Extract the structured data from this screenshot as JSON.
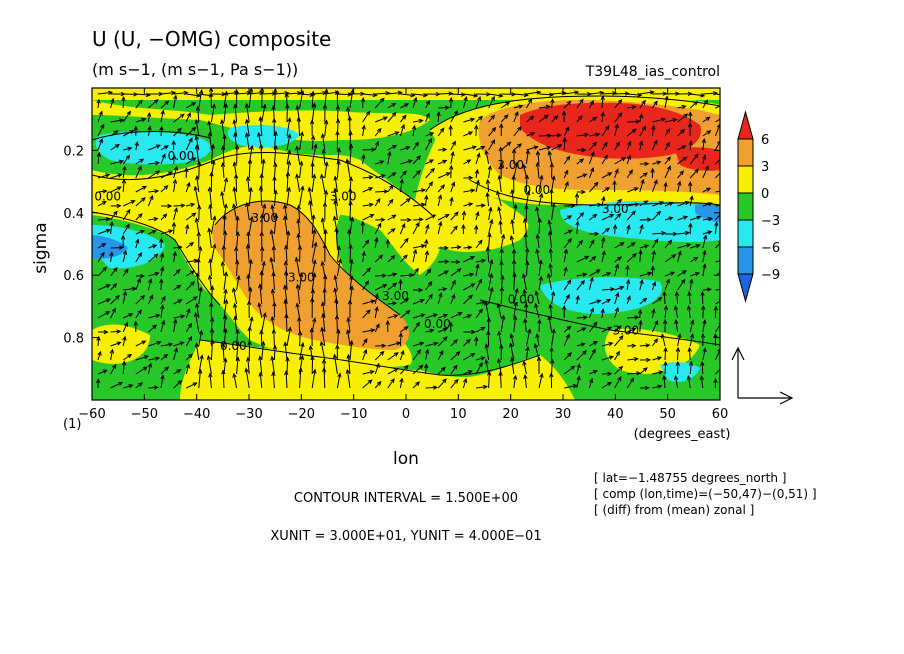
{
  "chart_data": {
    "type": "heatmap",
    "title": "U (U, −OMG) composite",
    "units": "(m s−1, (m s−1, Pa s−1))",
    "run": "T39L48_ias_control",
    "xlabel": "lon",
    "xunits": "(degrees_east)",
    "ylabel": "sigma",
    "corner_label": "(1)",
    "xlim": [
      -60,
      60
    ],
    "ylim": [
      1.0,
      0.0
    ],
    "x_ticks": [
      "−60",
      "−50",
      "−40",
      "−30",
      "−20",
      "−10",
      "0",
      "10",
      "20",
      "30",
      "40",
      "50",
      "60"
    ],
    "y_ticks": [
      "0.2",
      "0.4",
      "0.6",
      "0.8"
    ],
    "y_tick_values": [
      0.2,
      0.4,
      0.6,
      0.8
    ],
    "colorbar": {
      "labels": [
        "6",
        "3",
        "0",
        "−3",
        "−6",
        "−9"
      ],
      "bounds": [
        6,
        3,
        0,
        -3,
        -6,
        -9
      ],
      "colors": [
        "#e8261c",
        "#f0a030",
        "#f8f000",
        "#28c828",
        "#28e8f0",
        "#2896e8",
        "#1e64e0"
      ]
    },
    "contour_labels": [
      {
        "text": "0.00",
        "lon": -43,
        "sigma": 0.23
      },
      {
        "text": "0.00",
        "lon": -57,
        "sigma": 0.36
      },
      {
        "text": "3.00",
        "lon": -27,
        "sigma": 0.43
      },
      {
        "text": "3.00",
        "lon": -20,
        "sigma": 0.62
      },
      {
        "text": "3.00",
        "lon": -2,
        "sigma": 0.68
      },
      {
        "text": "0.00",
        "lon": 6,
        "sigma": 0.77
      },
      {
        "text": "0.00",
        "lon": -33,
        "sigma": 0.84
      },
      {
        "text": "3.00",
        "lon": -12,
        "sigma": 0.36
      },
      {
        "text": "3.00",
        "lon": 20,
        "sigma": 0.26
      },
      {
        "text": "0.00",
        "lon": 25,
        "sigma": 0.34
      },
      {
        "text": "3.00",
        "lon": 40,
        "sigma": 0.4
      },
      {
        "text": "0.00",
        "lon": 22,
        "sigma": 0.69
      },
      {
        "text": "3.00",
        "lon": 42,
        "sigma": 0.79
      }
    ],
    "info_lines": [
      "[ lat=−1.48755 degrees_north ]",
      "[ comp (lon,time)=(−50,47)−(0,51) ]",
      "[ (diff) from (mean) zonal ]"
    ],
    "contour_interval": "CONTOUR INTERVAL = 1.500E+00",
    "unit_vectors": "XUNIT = 3.000E+01, YUNIT = 4.000E−01"
  }
}
